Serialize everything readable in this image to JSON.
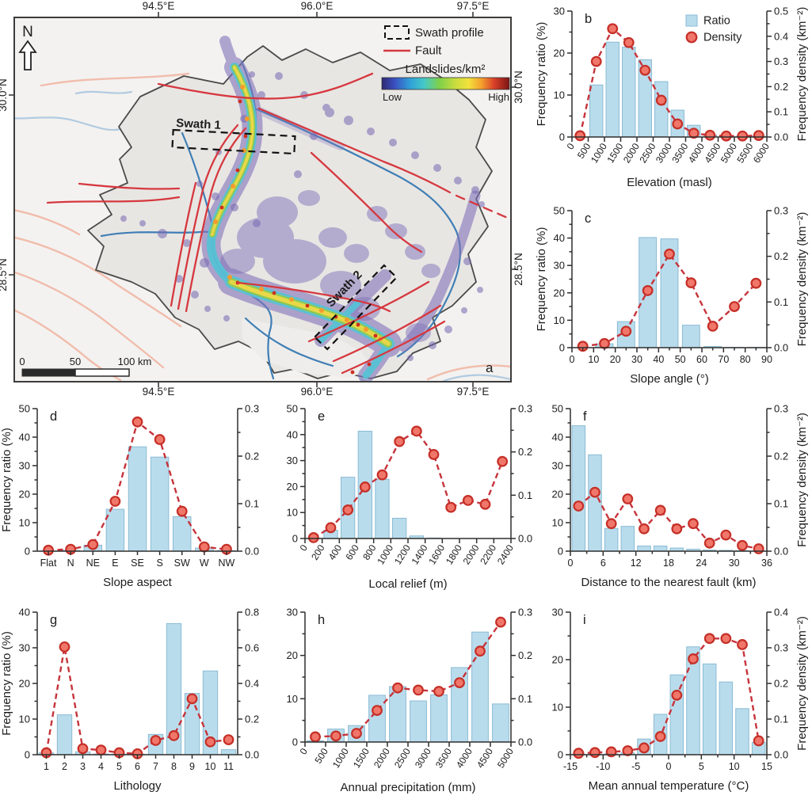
{
  "colors": {
    "bar_fill": "#b9dcec",
    "bar_edge": "#8abbd4",
    "marker_fill": "#f0766a",
    "marker_edge": "#c52f27",
    "line": "#c6343c",
    "axis": "#2e2e2e",
    "fault": "#d6383f",
    "fault_outside": "#f1b7a5",
    "river": "#3f7eb5",
    "river_outside": "#abc7df",
    "landslide_low": "#8173ba"
  },
  "map": {
    "panel_label": "a",
    "north_label": "N",
    "top_ticks": [
      "94.5°E",
      "96.0°E",
      "97.5°E"
    ],
    "bottom_ticks": [
      "94.5°E",
      "96.0°E",
      "97.5°E"
    ],
    "left_ticks": [
      "30.0°N",
      "28.5°N"
    ],
    "right_ticks": [
      "30.0°N",
      "28.5°N"
    ],
    "swath1_label": "Swath 1",
    "swath2_label": "Swath 2",
    "legend": {
      "swath": "Swath profile",
      "fault": "Fault",
      "colorbar_title": "Landslides/km²",
      "low": "Low",
      "high": "High"
    },
    "scalebar": {
      "t0": "0",
      "t50": "50",
      "t100": "100 km"
    }
  },
  "chart_data": [
    {
      "panel": "b",
      "type": "bar",
      "xlabel": "Elevation (masl)",
      "x_edge_ticks": [
        "0",
        "500",
        "1000",
        "1500",
        "2000",
        "2500",
        "3000",
        "3500",
        "4000",
        "4500",
        "5000",
        "5500",
        "6000"
      ],
      "rotate_x_ticks": true,
      "x_minor": false,
      "ratio_values": [
        0,
        12.4,
        22.6,
        21.4,
        18.4,
        13.2,
        6.4,
        2.8,
        0.5,
        0.3,
        0.2,
        0.2
      ],
      "density_values": [
        0.005,
        0.3,
        0.43,
        0.375,
        0.265,
        0.146,
        0.052,
        0.015,
        0.007,
        0.004,
        0.004,
        0.006
      ],
      "left": {
        "label": "Frequency ratio (%)",
        "max": 30,
        "ticks": [
          "0",
          "10",
          "20",
          "30"
        ]
      },
      "right": {
        "label": "Frequency density (km⁻²)",
        "max": 0.5,
        "ticks": [
          "0.0",
          "0.1",
          "0.2",
          "0.3",
          "0.4",
          "0.5"
        ]
      },
      "legend": {
        "ratio": "Ratio",
        "density": "Density"
      }
    },
    {
      "panel": "c",
      "type": "bar",
      "xlabel": "Slope angle (°)",
      "x_edge_ticks": [
        "0",
        "10",
        "20",
        "30",
        "40",
        "50",
        "60",
        "70",
        "80",
        "90"
      ],
      "rotate_x_ticks": false,
      "x_minor": true,
      "ratio_values": [
        0,
        1.4,
        9.5,
        40.2,
        39.7,
        8.2,
        0.4,
        0.1,
        0.1
      ],
      "density_values": [
        0.003,
        0.009,
        0.036,
        0.125,
        0.205,
        0.142,
        0.047,
        0.09,
        0.141
      ],
      "left": {
        "label": "Frequency ratio (%)",
        "max": 50,
        "ticks": [
          "0",
          "10",
          "20",
          "30",
          "40",
          "50"
        ]
      },
      "right": {
        "label": "Frequency density (km⁻²)",
        "max": 0.3,
        "ticks": [
          "0.0",
          "0.1",
          "0.2",
          "0.3"
        ]
      }
    },
    {
      "panel": "d",
      "type": "bar",
      "xlabel": "Slope aspect",
      "categories": [
        "Flat",
        "N",
        "NE",
        "E",
        "SE",
        "S",
        "SW",
        "W",
        "NW"
      ],
      "rotate_x_ticks": false,
      "x_minor": false,
      "ratio_values": [
        0.1,
        0.3,
        2.1,
        14.7,
        36.6,
        33.0,
        12.1,
        1.1,
        0.2
      ],
      "density_values": [
        0.002,
        0.004,
        0.014,
        0.105,
        0.272,
        0.235,
        0.084,
        0.009,
        0.004
      ],
      "left": {
        "label": "Frequency ratio (%)",
        "max": 50,
        "ticks": [
          "0",
          "10",
          "20",
          "30",
          "40",
          "50"
        ]
      },
      "right": {
        "label": "",
        "max": 0.3,
        "ticks": [
          "0.0",
          "0.1",
          "0.2",
          "0.3"
        ]
      }
    },
    {
      "panel": "e",
      "type": "bar",
      "xlabel": "Local relief (m)",
      "x_edge_ticks": [
        "0",
        "200",
        "400",
        "600",
        "800",
        "1000",
        "1200",
        "1400",
        "1600",
        "1800",
        "2000",
        "2200",
        "2400"
      ],
      "rotate_x_ticks": true,
      "x_minor": false,
      "ratio_values": [
        0.2,
        3.2,
        23.6,
        41.3,
        22.8,
        7.8,
        1.0,
        0.2,
        0,
        0,
        0,
        0
      ],
      "density_values": [
        0.002,
        0.025,
        0.066,
        0.119,
        0.147,
        0.224,
        0.248,
        0.194,
        0.072,
        0.088,
        0.079,
        0.178
      ],
      "left": {
        "label": "",
        "max": 50,
        "ticks": [
          "0",
          "10",
          "20",
          "30",
          "40",
          "50"
        ]
      },
      "right": {
        "label": "",
        "max": 0.3,
        "ticks": [
          "0.0",
          "0.1",
          "0.2",
          "0.3"
        ]
      }
    },
    {
      "panel": "f",
      "type": "bar",
      "xlabel": "Distance to the nearest fault (km)",
      "x_edge_ticks": [
        "0",
        "6",
        "12",
        "18",
        "24",
        "30",
        "36"
      ],
      "rotate_x_ticks": false,
      "x_minor": true,
      "ratio_values": [
        44,
        33.8,
        8.0,
        8.7,
        1.8,
        1.8,
        1.1,
        0.7,
        0.4,
        0.3,
        0.2,
        0.1
      ],
      "density_values": [
        0.095,
        0.124,
        0.058,
        0.11,
        0.047,
        0.086,
        0.047,
        0.058,
        0.017,
        0.034,
        0.012,
        0.005
      ],
      "left": {
        "label": "",
        "max": 50,
        "ticks": [
          "0",
          "10",
          "20",
          "30",
          "40",
          "50"
        ]
      },
      "right": {
        "label": "Frequency density (km⁻²)",
        "max": 0.3,
        "ticks": [
          "0.0",
          "0.1",
          "0.2",
          "0.3"
        ]
      }
    },
    {
      "panel": "g",
      "type": "bar",
      "xlabel": "Lithology",
      "categories": [
        "1",
        "2",
        "3",
        "4",
        "5",
        "6",
        "7",
        "8",
        "9",
        "10",
        "11"
      ],
      "rotate_x_ticks": false,
      "x_minor": false,
      "ratio_values": [
        0.5,
        11.2,
        0.8,
        0.2,
        0.15,
        0.15,
        5.7,
        36.8,
        17.2,
        23.5,
        1.4
      ],
      "density_values": [
        0.011,
        0.605,
        0.034,
        0.026,
        0.011,
        0.005,
        0.08,
        0.107,
        0.314,
        0.072,
        0.084
      ],
      "left": {
        "label": "Frequency ratio (%)",
        "max": 40,
        "ticks": [
          "0",
          "10",
          "20",
          "30",
          "40"
        ]
      },
      "right": {
        "label": "",
        "max": 0.8,
        "ticks": [
          "0.0",
          "0.2",
          "0.4",
          "0.6",
          "0.8"
        ]
      }
    },
    {
      "panel": "h",
      "type": "bar",
      "xlabel": "Annual precipitation (mm)",
      "x_edge_ticks": [
        "0",
        "500",
        "1000",
        "1500",
        "2000",
        "2500",
        "3000",
        "3500",
        "4000",
        "4500",
        "5000"
      ],
      "rotate_x_ticks": true,
      "x_minor": false,
      "ratio_values": [
        0.3,
        3.0,
        3.8,
        10.8,
        12.8,
        9.5,
        10.9,
        17.2,
        25.4,
        8.8
      ],
      "density_values": [
        0.012,
        0.014,
        0.02,
        0.073,
        0.125,
        0.12,
        0.117,
        0.137,
        0.21,
        0.277
      ],
      "left": {
        "label": "",
        "max": 30,
        "ticks": [
          "0",
          "10",
          "20",
          "30"
        ]
      },
      "right": {
        "label": "",
        "max": 0.3,
        "ticks": [
          "0.0",
          "0.1",
          "0.2",
          "0.3"
        ]
      }
    },
    {
      "panel": "i",
      "type": "bar",
      "xlabel": "Mean annual temperature (°C)",
      "x_edge_ticks": [
        "-15",
        "-10",
        "-5",
        "0",
        "5",
        "10",
        "15"
      ],
      "rotate_x_ticks": false,
      "x_minor": true,
      "ratio_values": [
        0.1,
        0.15,
        0.2,
        0.4,
        3.3,
        8.5,
        16.8,
        22.7,
        19.1,
        15.3,
        9.7,
        2.6
      ],
      "density_values": [
        0.004,
        0.006,
        0.008,
        0.011,
        0.019,
        0.051,
        0.167,
        0.269,
        0.326,
        0.326,
        0.309,
        0.039
      ],
      "left": {
        "label": "",
        "max": 30,
        "ticks": [
          "0",
          "10",
          "20",
          "30"
        ]
      },
      "right": {
        "label": "Frequency density (km⁻²)",
        "max": 0.4,
        "ticks": [
          "0.0",
          "0.1",
          "0.2",
          "0.3",
          "0.4"
        ]
      }
    }
  ]
}
